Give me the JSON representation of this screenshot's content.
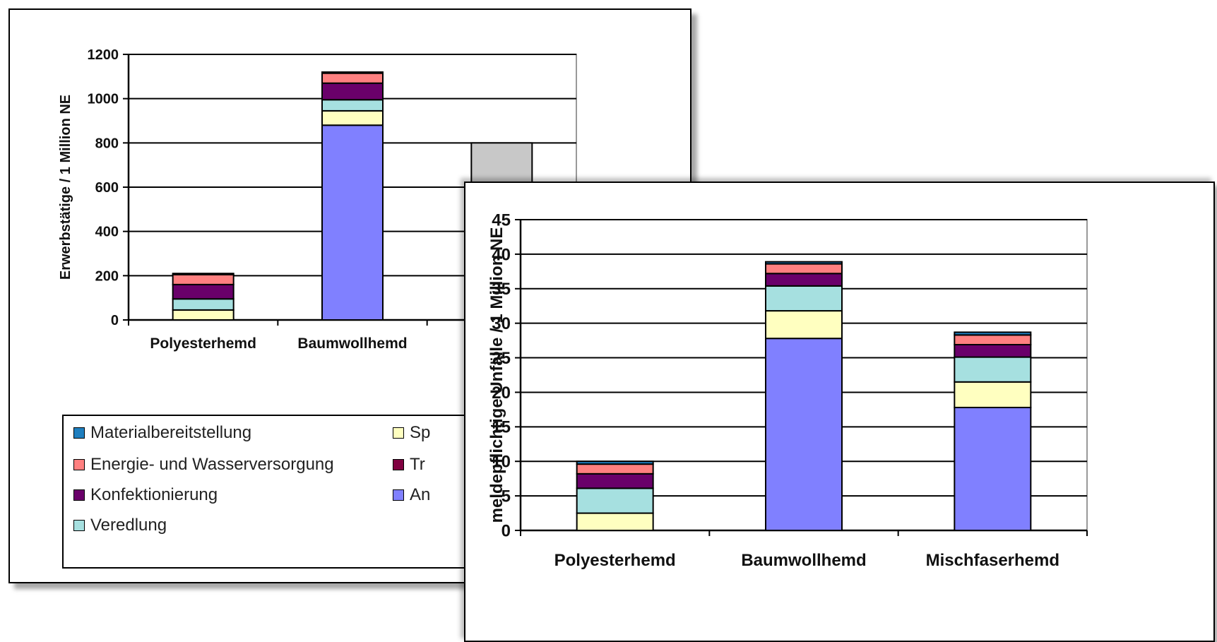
{
  "chart_data": [
    {
      "type": "bar",
      "stacked": true,
      "ylabel": "Erwerbstätige / 1 Million NE",
      "ylim": [
        0,
        1200
      ],
      "yticks": [
        "0",
        "200",
        "400",
        "600",
        "800",
        "1000",
        "1200"
      ],
      "categories": [
        "Polyesterhemd",
        "Baumwollhemd",
        ""
      ],
      "series": [
        {
          "name": "Materialbereitstellung",
          "color": "#1f7fbf",
          "values": [
            0,
            0,
            0
          ]
        },
        {
          "name": "Anbau",
          "color": "#8080ff",
          "values": [
            0,
            880,
            0
          ]
        },
        {
          "name": "Spinnerei",
          "color": "#ffffc0",
          "values": [
            45,
            65,
            0
          ]
        },
        {
          "name": "Veredlung",
          "color": "#a6e0e0",
          "values": [
            50,
            50,
            0
          ]
        },
        {
          "name": "Konfektionierung",
          "color": "#6a006a",
          "values": [
            65,
            75,
            0
          ]
        },
        {
          "name": "Transport",
          "color": "#800040",
          "values": [
            0,
            0,
            0
          ]
        },
        {
          "name": "Energie- und  Wasserversorgung",
          "color": "#ff8080",
          "values": [
            45,
            45,
            0
          ]
        },
        {
          "name": "",
          "color": "#c8c8c8",
          "values": [
            5,
            5,
            800
          ]
        }
      ],
      "legend": {
        "placement": "bottom",
        "items": [
          {
            "label": "Materialbereitstellung",
            "color": "#1f7fbf"
          },
          {
            "label": "Energie- und  Wasserversorgung",
            "color": "#ff8080"
          },
          {
            "label": "Konfektionierung",
            "color": "#6a006a"
          },
          {
            "label": "Veredlung",
            "color": "#a6e0e0"
          },
          {
            "label": "Sp",
            "color": "#ffffc0"
          },
          {
            "label": "Tr",
            "color": "#800040"
          },
          {
            "label": "An",
            "color": "#8080ff"
          }
        ]
      },
      "grid": true
    },
    {
      "type": "bar",
      "stacked": true,
      "ylabel": "meldepflichtige Unfälle / 1 Million NE",
      "ylim": [
        0,
        45
      ],
      "yticks": [
        "0",
        "5",
        "10",
        "15",
        "20",
        "25",
        "30",
        "35",
        "40",
        "45"
      ],
      "categories": [
        "Polyesterhemd",
        "Baumwollhemd",
        "Mischfaserhemd"
      ],
      "series": [
        {
          "name": "Anbau",
          "color": "#8080ff",
          "values": [
            0,
            27.8,
            17.8
          ]
        },
        {
          "name": "Spinnerei",
          "color": "#ffffc0",
          "values": [
            2.5,
            4,
            3.7
          ]
        },
        {
          "name": "Veredlung",
          "color": "#a6e0e0",
          "values": [
            3.6,
            3.6,
            3.6
          ]
        },
        {
          "name": "Konfektionierung",
          "color": "#6a006a",
          "values": [
            2.1,
            1.8,
            1.8
          ]
        },
        {
          "name": "Energie- und  Wasserversorgung",
          "color": "#ff8080",
          "values": [
            1.4,
            1.4,
            1.4
          ]
        },
        {
          "name": "Materialbereitstellung",
          "color": "#1f7fbf",
          "values": [
            0.4,
            0.3,
            0.4
          ]
        }
      ],
      "grid": true
    }
  ]
}
